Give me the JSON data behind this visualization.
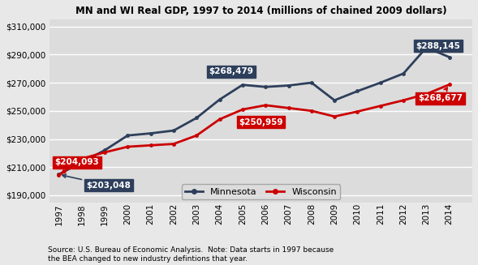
{
  "title": "MN and WI Real GDP, 1997 to 2014 (millions of chained 2009 dollars)",
  "years": [
    1997,
    1998,
    1999,
    2000,
    2001,
    2002,
    2003,
    2004,
    2005,
    2006,
    2007,
    2008,
    2009,
    2010,
    2011,
    2012,
    2013,
    2014
  ],
  "mn_gdp": [
    204800,
    213500,
    222000,
    232500,
    234000,
    236000,
    245000,
    258000,
    268479,
    267000,
    268000,
    270000,
    257500,
    264000,
    270000,
    276500,
    295000,
    288145
  ],
  "wi_gdp": [
    204093,
    216000,
    220500,
    224500,
    225500,
    226500,
    232500,
    244000,
    250959,
    254000,
    252000,
    250000,
    246000,
    249500,
    253500,
    257500,
    262000,
    268677
  ],
  "mn_color": "#2E3F5C",
  "wi_color": "#CC0000",
  "outer_bg": "#E8E8E8",
  "plot_bg": "#DCDCDC",
  "ylim_low": 185000,
  "ylim_high": 315000,
  "yticks": [
    190000,
    210000,
    230000,
    250000,
    270000,
    290000,
    310000
  ],
  "source_text": "Source: U.S. Bureau of Economic Analysis.  Note: Data starts in 1997 because\nthe BEA changed to new industry defintions that year.",
  "legend_mn": "Minnesota",
  "legend_wi": "Wisconsin"
}
